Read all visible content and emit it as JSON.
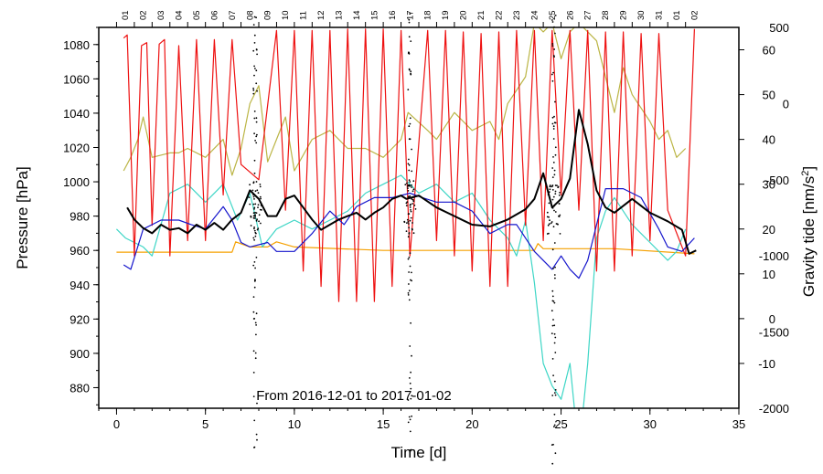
{
  "chart_data": {
    "type": "line",
    "annotation": "From 2016-12-01 to 2017-01-02",
    "x_axis": {
      "label": "Time [d]",
      "range": [
        -1,
        35
      ],
      "ticks": [
        "0",
        "5",
        "10",
        "15",
        "20",
        "25",
        "30",
        "35"
      ],
      "tick_values": [
        0,
        5,
        10,
        15,
        20,
        25,
        30,
        35
      ]
    },
    "top_axis": {
      "day_labels": [
        "01",
        "02",
        "03",
        "04",
        "05",
        "06",
        "07",
        "08",
        "09",
        "10",
        "11",
        "12",
        "13",
        "14",
        "15",
        "16",
        "17",
        "18",
        "19",
        "20",
        "21",
        "22",
        "23",
        "24",
        "25",
        "26",
        "27",
        "28",
        "29",
        "30",
        "31",
        "01",
        "02"
      ]
    },
    "left_axis": {
      "label": "Pressure [hPa]",
      "range": [
        868,
        1090
      ],
      "ticks": [
        "880",
        "900",
        "920",
        "940",
        "960",
        "980",
        "1000",
        "1020",
        "1040",
        "1060",
        "1080"
      ],
      "tick_values": [
        880,
        900,
        920,
        940,
        960,
        980,
        1000,
        1020,
        1040,
        1060,
        1080
      ]
    },
    "right_axis_upper": {
      "label": "Gravity tide [nm/s²]",
      "label_main": "Gravity tide [nm/s",
      "label_sup": "2",
      "label_end": "]",
      "range": [
        -20,
        65
      ],
      "ticks": [
        "-10",
        "0",
        "10",
        "20",
        "30",
        "40",
        "50",
        "60"
      ],
      "tick_values": [
        -10,
        0,
        10,
        20,
        30,
        40,
        50,
        60
      ]
    },
    "right_axis_lower": {
      "range": [
        -2000,
        500
      ],
      "ticks": [
        "-2000",
        "-1500",
        "-1000",
        "-500",
        "0",
        "500"
      ],
      "tick_values": [
        -2000,
        -1500,
        -1000,
        -500,
        0,
        500
      ]
    },
    "series": [
      {
        "name": "pressure-black",
        "color": "#000000",
        "axis": "left",
        "points": [
          [
            0.6,
            985
          ],
          [
            1,
            978
          ],
          [
            1.5,
            973
          ],
          [
            2,
            970
          ],
          [
            2.5,
            975
          ],
          [
            3,
            972
          ],
          [
            3.5,
            973
          ],
          [
            4,
            970
          ],
          [
            4.5,
            975
          ],
          [
            5,
            972
          ],
          [
            5.5,
            976
          ],
          [
            6,
            972
          ],
          [
            6.5,
            978
          ],
          [
            7,
            982
          ],
          [
            7.5,
            995
          ],
          [
            8,
            990
          ],
          [
            8.5,
            980
          ],
          [
            9,
            980
          ],
          [
            9.5,
            990
          ],
          [
            10,
            992
          ],
          [
            10.5,
            985
          ],
          [
            11,
            978
          ],
          [
            11.5,
            972
          ],
          [
            12,
            975
          ],
          [
            12.5,
            978
          ],
          [
            13,
            980
          ],
          [
            13.5,
            982
          ],
          [
            14,
            978
          ],
          [
            14.5,
            982
          ],
          [
            15,
            985
          ],
          [
            15.5,
            990
          ],
          [
            16,
            992
          ],
          [
            16.3,
            990
          ],
          [
            17,
            992
          ],
          [
            18,
            985
          ],
          [
            19,
            980
          ],
          [
            20,
            975
          ],
          [
            21,
            974
          ],
          [
            22,
            978
          ],
          [
            23,
            984
          ],
          [
            23.5,
            990
          ],
          [
            24,
            1005
          ],
          [
            24.5,
            985
          ],
          [
            25,
            990
          ],
          [
            25.5,
            1002
          ],
          [
            26,
            1042
          ],
          [
            26.5,
            1022
          ],
          [
            27,
            995
          ],
          [
            27.5,
            985
          ],
          [
            28,
            982
          ],
          [
            29,
            990
          ],
          [
            30,
            982
          ],
          [
            31,
            977
          ],
          [
            31.8,
            972
          ],
          [
            32.2,
            958
          ],
          [
            32.6,
            960
          ]
        ]
      },
      {
        "name": "gravity-tide-blue",
        "color": "#1515cc",
        "axis": "right_upper",
        "points": [
          [
            0.4,
            12
          ],
          [
            0.8,
            11
          ],
          [
            1.5,
            20
          ],
          [
            2.5,
            22
          ],
          [
            3.5,
            22
          ],
          [
            4.2,
            21
          ],
          [
            5,
            20
          ],
          [
            6,
            25
          ],
          [
            6.5,
            22
          ],
          [
            7,
            17
          ],
          [
            7.5,
            16
          ],
          [
            8.5,
            17
          ],
          [
            9,
            15
          ],
          [
            9.5,
            15
          ],
          [
            10,
            15
          ],
          [
            11,
            19
          ],
          [
            12,
            24
          ],
          [
            12.8,
            21
          ],
          [
            13.5,
            25
          ],
          [
            14.5,
            27
          ],
          [
            15.5,
            27
          ],
          [
            16.5,
            28
          ],
          [
            17.2,
            27
          ],
          [
            18,
            26
          ],
          [
            19,
            26
          ],
          [
            20,
            24
          ],
          [
            21,
            19
          ],
          [
            22,
            21
          ],
          [
            22.5,
            21
          ],
          [
            23.5,
            15
          ],
          [
            24.5,
            11
          ],
          [
            25,
            14
          ],
          [
            25.5,
            11
          ],
          [
            26,
            9
          ],
          [
            26.5,
            13
          ],
          [
            27.5,
            29
          ],
          [
            28.5,
            29
          ],
          [
            29.5,
            27
          ],
          [
            30.5,
            20
          ],
          [
            31,
            16
          ],
          [
            31.8,
            15
          ],
          [
            32.5,
            18
          ]
        ]
      },
      {
        "name": "gravity-tide-teal",
        "color": "#3ed6c6",
        "axis": "right_upper",
        "points": [
          [
            0,
            20
          ],
          [
            0.5,
            18
          ],
          [
            1.5,
            16
          ],
          [
            2,
            14
          ],
          [
            3,
            28
          ],
          [
            4,
            30
          ],
          [
            5,
            26
          ],
          [
            6,
            30
          ],
          [
            6.8,
            22
          ],
          [
            7.5,
            28
          ],
          [
            8.2,
            16
          ],
          [
            9,
            20
          ],
          [
            10,
            22
          ],
          [
            11,
            20
          ],
          [
            12,
            22
          ],
          [
            13,
            24
          ],
          [
            14,
            28
          ],
          [
            15,
            30
          ],
          [
            16,
            32
          ],
          [
            16.5,
            30
          ],
          [
            17,
            28
          ],
          [
            18,
            30
          ],
          [
            19,
            26
          ],
          [
            20,
            28
          ],
          [
            21,
            22
          ],
          [
            22,
            18
          ],
          [
            22.5,
            14
          ],
          [
            23,
            22
          ],
          [
            23.5,
            8
          ],
          [
            24,
            -10
          ],
          [
            24.5,
            -15
          ],
          [
            25,
            -18
          ],
          [
            25.5,
            -10
          ],
          [
            26,
            -30
          ],
          [
            26.5,
            -10
          ],
          [
            27,
            18
          ],
          [
            27.5,
            24
          ],
          [
            28,
            27
          ],
          [
            29,
            21
          ],
          [
            30,
            17
          ],
          [
            31,
            13
          ],
          [
            31.5,
            15
          ],
          [
            32,
            20
          ]
        ]
      },
      {
        "name": "gravity-tide-olive",
        "color": "#bbb545",
        "axis": "right_upper",
        "points": [
          [
            0.4,
            33
          ],
          [
            0.8,
            36
          ],
          [
            1.2,
            40
          ],
          [
            1.5,
            45
          ],
          [
            2,
            36
          ],
          [
            3,
            37
          ],
          [
            3.5,
            37
          ],
          [
            4,
            38
          ],
          [
            5,
            36
          ],
          [
            6,
            40
          ],
          [
            6.5,
            32
          ],
          [
            7,
            38
          ],
          [
            7.5,
            48
          ],
          [
            8,
            52
          ],
          [
            8.5,
            35
          ],
          [
            9,
            40
          ],
          [
            9.5,
            45
          ],
          [
            10,
            33
          ],
          [
            11,
            40
          ],
          [
            12,
            42
          ],
          [
            13,
            38
          ],
          [
            14,
            38
          ],
          [
            15,
            36
          ],
          [
            15.5,
            38
          ],
          [
            16,
            40
          ],
          [
            16.4,
            46
          ],
          [
            17.5,
            42
          ],
          [
            18,
            40
          ],
          [
            19,
            46
          ],
          [
            20,
            42
          ],
          [
            21,
            44
          ],
          [
            21.5,
            40
          ],
          [
            22,
            48
          ],
          [
            23,
            54
          ],
          [
            23.5,
            66
          ],
          [
            24,
            64
          ],
          [
            24.5,
            66
          ],
          [
            25,
            58
          ],
          [
            25.5,
            64
          ],
          [
            26,
            66
          ],
          [
            27,
            62
          ],
          [
            28,
            46
          ],
          [
            28.5,
            56
          ],
          [
            29,
            50
          ],
          [
            30,
            44
          ],
          [
            30.5,
            40
          ],
          [
            31,
            42
          ],
          [
            31.5,
            36
          ],
          [
            32,
            38
          ]
        ]
      },
      {
        "name": "gravity-orange",
        "color": "#f5a000",
        "axis": "left",
        "points": [
          [
            0,
            959
          ],
          [
            3,
            959
          ],
          [
            6.5,
            959
          ],
          [
            6.7,
            965
          ],
          [
            7.5,
            962
          ],
          [
            8.5,
            962
          ],
          [
            9,
            965
          ],
          [
            10,
            962
          ],
          [
            15,
            960
          ],
          [
            17,
            960
          ],
          [
            20,
            960
          ],
          [
            23.5,
            960
          ],
          [
            23.7,
            964
          ],
          [
            24,
            961
          ],
          [
            28,
            961
          ],
          [
            32.5,
            958
          ]
        ]
      },
      {
        "name": "tide-red",
        "color": "#ee1111",
        "axis": "right_lower",
        "points": [
          [
            0.4,
            430
          ],
          [
            0.6,
            450
          ],
          [
            1,
            -1000
          ],
          [
            1.4,
            380
          ],
          [
            1.7,
            400
          ],
          [
            2,
            -800
          ],
          [
            2.4,
            390
          ],
          [
            2.7,
            420
          ],
          [
            3,
            -1000
          ],
          [
            3.5,
            380
          ],
          [
            4,
            -900
          ],
          [
            4.5,
            420
          ],
          [
            5,
            -900
          ],
          [
            5.5,
            420
          ],
          [
            6,
            -600
          ],
          [
            6.5,
            420
          ],
          [
            7,
            -400
          ],
          [
            8,
            -500
          ],
          [
            9,
            480
          ],
          [
            9.5,
            -700
          ],
          [
            10,
            480
          ],
          [
            10.5,
            -1100
          ],
          [
            11,
            480
          ],
          [
            11.5,
            -1200
          ],
          [
            12,
            480
          ],
          [
            12.5,
            -1300
          ],
          [
            13,
            490
          ],
          [
            13.5,
            -1300
          ],
          [
            14,
            490
          ],
          [
            14.5,
            -1300
          ],
          [
            15,
            490
          ],
          [
            15.5,
            -1200
          ],
          [
            16,
            480
          ],
          [
            16.5,
            -1000
          ],
          [
            17.5,
            480
          ],
          [
            18,
            -900
          ],
          [
            18.5,
            480
          ],
          [
            19,
            -1000
          ],
          [
            19.5,
            470
          ],
          [
            20,
            -1100
          ],
          [
            20.5,
            460
          ],
          [
            21,
            -1200
          ],
          [
            21.5,
            470
          ],
          [
            22,
            -1200
          ],
          [
            22.5,
            480
          ],
          [
            23,
            -800
          ],
          [
            23.5,
            480
          ],
          [
            24,
            -900
          ],
          [
            24.5,
            480
          ],
          [
            25,
            -600
          ],
          [
            25.5,
            480
          ],
          [
            26,
            -700
          ],
          [
            26.5,
            480
          ],
          [
            27,
            -1100
          ],
          [
            27.5,
            470
          ],
          [
            28,
            -1100
          ],
          [
            28.5,
            470
          ],
          [
            29,
            -1000
          ],
          [
            29.5,
            460
          ],
          [
            30,
            -900
          ],
          [
            30.5,
            460
          ],
          [
            31,
            -700
          ],
          [
            32,
            -1000
          ],
          [
            32.5,
            490
          ]
        ]
      }
    ],
    "scatter_clusters": [
      {
        "name": "scatter-day8",
        "x": 7.8
      },
      {
        "name": "scatter-day16",
        "x": 16.5
      },
      {
        "name": "scatter-day25",
        "x": 24.6
      }
    ]
  }
}
